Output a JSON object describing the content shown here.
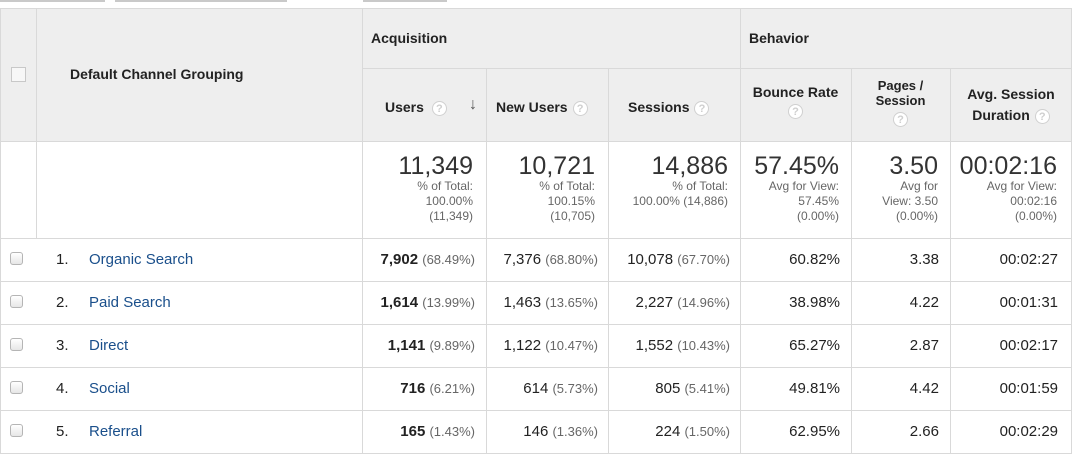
{
  "header": {
    "dimension_label": "Default Channel Grouping",
    "group_acquisition": "Acquisition",
    "group_behavior": "Behavior",
    "col_users": "Users",
    "col_new_users": "New Users",
    "col_sessions": "Sessions",
    "col_bounce_rate": "Bounce Rate",
    "col_pages_session_l1": "Pages /",
    "col_pages_session_l2": "Session",
    "col_avg_duration_l1": "Avg. Session",
    "col_avg_duration_l2": "Duration",
    "help_glyph": "?",
    "sort_glyph": "↓",
    "sort_icon": "arrow-down-icon",
    "help_icon": "help-circle-icon"
  },
  "totals": {
    "users": "11,349",
    "users_sub": [
      "% of Total:",
      "100.00%",
      "(11,349)"
    ],
    "new_users": "10,721",
    "new_users_sub": [
      "% of Total:",
      "100.15%",
      "(10,705)"
    ],
    "sessions": "14,886",
    "sessions_sub": [
      "% of Total:",
      "100.00% (14,886)"
    ],
    "bounce_rate": "57.45%",
    "bounce_rate_sub": [
      "Avg for View:",
      "57.45%",
      "(0.00%)"
    ],
    "pages_session": "3.50",
    "pages_session_sub": [
      "Avg for",
      "View: 3.50",
      "(0.00%)"
    ],
    "avg_duration": "00:02:16",
    "avg_duration_sub": [
      "Avg for View:",
      "00:02:16",
      "(0.00%)"
    ]
  },
  "rows": [
    {
      "idx": "1.",
      "channel": "Organic Search",
      "users": "7,902",
      "users_pct": "(68.49%)",
      "new_users": "7,376",
      "new_users_pct": "(68.80%)",
      "sessions": "10,078",
      "sessions_pct": "(67.70%)",
      "bounce": "60.82%",
      "pages": "3.38",
      "duration": "00:02:27"
    },
    {
      "idx": "2.",
      "channel": "Paid Search",
      "users": "1,614",
      "users_pct": "(13.99%)",
      "new_users": "1,463",
      "new_users_pct": "(13.65%)",
      "sessions": "2,227",
      "sessions_pct": "(14.96%)",
      "bounce": "38.98%",
      "pages": "4.22",
      "duration": "00:01:31"
    },
    {
      "idx": "3.",
      "channel": "Direct",
      "users": "1,141",
      "users_pct": "(9.89%)",
      "new_users": "1,122",
      "new_users_pct": "(10.47%)",
      "sessions": "1,552",
      "sessions_pct": "(10.43%)",
      "bounce": "65.27%",
      "pages": "2.87",
      "duration": "00:02:17"
    },
    {
      "idx": "4.",
      "channel": "Social",
      "users": "716",
      "users_pct": "(6.21%)",
      "new_users": "614",
      "new_users_pct": "(5.73%)",
      "sessions": "805",
      "sessions_pct": "(5.41%)",
      "bounce": "49.81%",
      "pages": "4.42",
      "duration": "00:01:59"
    },
    {
      "idx": "5.",
      "channel": "Referral",
      "users": "165",
      "users_pct": "(1.43%)",
      "new_users": "146",
      "new_users_pct": "(1.36%)",
      "sessions": "224",
      "sessions_pct": "(1.50%)",
      "bounce": "62.95%",
      "pages": "2.66",
      "duration": "00:02:29"
    }
  ]
}
